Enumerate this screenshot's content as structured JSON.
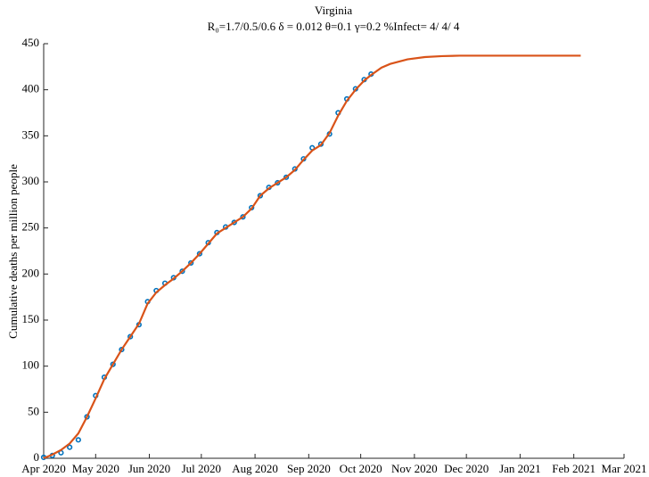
{
  "chart_data": {
    "type": "line",
    "title": "Virginia",
    "subtitle": "R₀=1.7/0.5/0.6  δ = 0.012  θ=0.1  γ=0.2  %Infect= 4/ 4/ 4",
    "y_label": "Cumulative deaths per million people",
    "series": [
      {
        "style": "dots",
        "color": "#0072bd",
        "x": [
          0,
          5,
          10,
          15,
          20,
          25,
          30,
          35,
          40,
          45,
          50,
          55,
          60,
          65,
          70,
          75,
          80,
          85,
          90,
          95,
          100,
          105,
          110,
          115,
          120,
          125,
          130,
          135,
          140,
          145,
          150,
          155,
          160,
          165,
          170,
          175,
          180,
          185,
          189
        ],
        "values": [
          1,
          3,
          6,
          12,
          20,
          45,
          68,
          88,
          102,
          118,
          132,
          145,
          170,
          182,
          190,
          196,
          203,
          212,
          222,
          234,
          245,
          251,
          256,
          262,
          272,
          285,
          294,
          299,
          305,
          314,
          325,
          337,
          341,
          352,
          375,
          390,
          401,
          411,
          417
        ]
      },
      {
        "style": "line",
        "color": "#d95319",
        "x": [
          0,
          5,
          10,
          15,
          20,
          25,
          30,
          35,
          40,
          45,
          50,
          55,
          60,
          65,
          70,
          75,
          80,
          85,
          90,
          95,
          100,
          105,
          110,
          115,
          120,
          125,
          130,
          135,
          140,
          145,
          150,
          155,
          160,
          165,
          170,
          175,
          180,
          185,
          189,
          195,
          200,
          210,
          220,
          230,
          240,
          260,
          280,
          310
        ],
        "values": [
          0,
          4,
          9,
          16,
          27,
          45,
          65,
          86,
          102,
          118,
          132,
          146,
          168,
          180,
          188,
          195,
          203,
          212,
          222,
          233,
          244,
          250,
          256,
          262,
          271,
          285,
          293,
          299,
          305,
          313,
          324,
          334,
          340,
          353,
          372,
          388,
          400,
          410,
          416,
          424,
          428,
          433,
          435.5,
          436.5,
          437,
          437,
          437,
          437
        ]
      }
    ],
    "xlim": [
      0,
      335
    ],
    "xticks": [
      {
        "value": 0,
        "label": "Apr 2020"
      },
      {
        "value": 30,
        "label": "May 2020"
      },
      {
        "value": 61,
        "label": "Jun 2020"
      },
      {
        "value": 91,
        "label": "Jul 2020"
      },
      {
        "value": 122,
        "label": "Aug 2020"
      },
      {
        "value": 153,
        "label": "Sep 2020"
      },
      {
        "value": 183,
        "label": "Oct 2020"
      },
      {
        "value": 214,
        "label": "Nov 2020"
      },
      {
        "value": 244,
        "label": "Dec 2020"
      },
      {
        "value": 275,
        "label": "Jan 2021"
      },
      {
        "value": 306,
        "label": "Feb 2021"
      },
      {
        "value": 335,
        "label": "Mar 2021"
      }
    ],
    "ylim": [
      0,
      450
    ],
    "yticks": [
      0,
      50,
      100,
      150,
      200,
      250,
      300,
      350,
      400,
      450
    ]
  }
}
